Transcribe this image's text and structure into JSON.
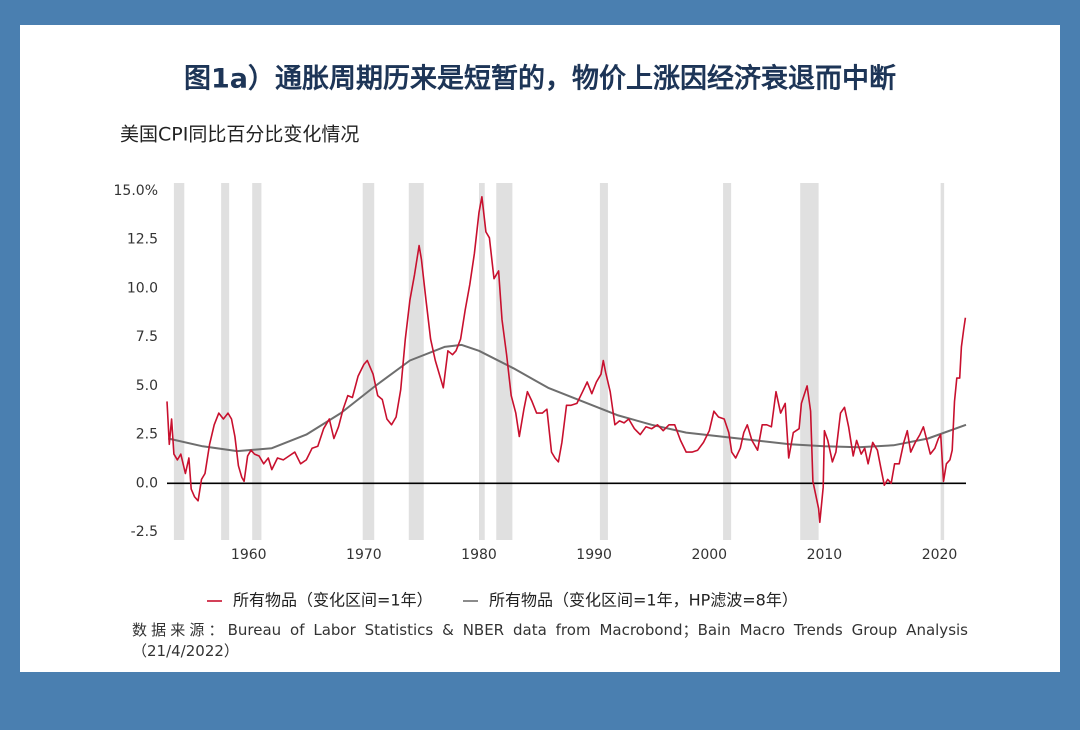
{
  "chart_data": {
    "type": "line",
    "title": "图1a）通胀周期历来是短暂的，物价上涨因经济衰退而中断",
    "subtitle": "美国CPI同比百分比变化情况",
    "source": "数据来源：Bureau of Labor Statistics & NBER data from Macrobond；Bain Macro Trends Group Analysis （21/4/2022）",
    "xlim": [
      1952.9,
      2022.3
    ],
    "xticks": [
      1960,
      1970,
      1980,
      1990,
      2000,
      2010,
      2020
    ],
    "ylim": [
      -2.5,
      15
    ],
    "yticks": [
      {
        "value": 15,
        "label": "15.0%"
      },
      12.5,
      {
        "value": 10,
        "label": "10.0"
      },
      7.5,
      {
        "value": 5,
        "label": "5.0"
      },
      2.5,
      {
        "value": 0,
        "label": "0.0"
      },
      -2.5
    ],
    "grid": false,
    "recession_color": "#e0e0e0",
    "recessions": [
      [
        1953.5,
        1954.4
      ],
      [
        1957.6,
        1958.3
      ],
      [
        1960.3,
        1961.1
      ],
      [
        1969.9,
        1970.9
      ],
      [
        1973.9,
        1975.2
      ],
      [
        1980.0,
        1980.5
      ],
      [
        1981.5,
        1982.9
      ],
      [
        1990.5,
        1991.2
      ],
      [
        2001.2,
        2001.9
      ],
      [
        2007.9,
        2009.5
      ],
      [
        2020.1,
        2020.4
      ]
    ],
    "series": [
      {
        "name": "所有物品（变化区间=1年）",
        "color": "#c8102e",
        "x": [
          1952.9,
          1953.1,
          1953.3,
          1953.5,
          1953.8,
          1954.1,
          1954.5,
          1954.8,
          1955.0,
          1955.3,
          1955.6,
          1955.9,
          1956.2,
          1956.6,
          1957.0,
          1957.4,
          1957.8,
          1958.2,
          1958.5,
          1958.8,
          1959.1,
          1959.4,
          1959.6,
          1959.9,
          1960.2,
          1960.5,
          1960.9,
          1961.3,
          1961.7,
          1962.0,
          1962.5,
          1963.0,
          1963.5,
          1964.0,
          1964.5,
          1965.0,
          1965.5,
          1966.0,
          1966.5,
          1967.0,
          1967.4,
          1967.8,
          1968.2,
          1968.6,
          1969.0,
          1969.5,
          1970.0,
          1970.3,
          1970.8,
          1971.2,
          1971.6,
          1972.0,
          1972.4,
          1972.8,
          1973.2,
          1973.6,
          1974.0,
          1974.4,
          1974.8,
          1975.0,
          1975.4,
          1975.8,
          1976.2,
          1976.6,
          1976.9,
          1977.3,
          1977.7,
          1978.0,
          1978.4,
          1978.8,
          1979.2,
          1979.6,
          1980.0,
          1980.25,
          1980.6,
          1980.9,
          1981.3,
          1981.7,
          1982.0,
          1982.4,
          1982.8,
          1983.2,
          1983.5,
          1983.9,
          1984.2,
          1984.6,
          1985.0,
          1985.5,
          1985.9,
          1986.3,
          1986.6,
          1986.9,
          1987.2,
          1987.6,
          1988.0,
          1988.5,
          1989.0,
          1989.4,
          1989.8,
          1990.2,
          1990.6,
          1990.8,
          1991.0,
          1991.4,
          1991.8,
          1992.2,
          1992.6,
          1993.0,
          1993.5,
          1994.0,
          1994.5,
          1995.0,
          1995.5,
          1996.0,
          1996.5,
          1997.0,
          1997.5,
          1998.0,
          1998.5,
          1999.0,
          1999.5,
          2000.0,
          2000.4,
          2000.8,
          2001.3,
          2001.7,
          2001.95,
          2002.3,
          2002.7,
          2003.0,
          2003.3,
          2003.7,
          2004.2,
          2004.6,
          2005.0,
          2005.4,
          2005.8,
          2006.2,
          2006.6,
          2006.9,
          2007.3,
          2007.8,
          2008.0,
          2008.5,
          2008.8,
          2009.0,
          2009.5,
          2009.6,
          2009.9,
          2010.0,
          2010.3,
          2010.7,
          2011.0,
          2011.4,
          2011.75,
          2012.1,
          2012.5,
          2012.8,
          2013.2,
          2013.5,
          2013.8,
          2014.2,
          2014.6,
          2014.9,
          2015.2,
          2015.5,
          2015.8,
          2016.1,
          2016.5,
          2016.9,
          2017.2,
          2017.5,
          2017.9,
          2018.3,
          2018.6,
          2018.9,
          2019.2,
          2019.6,
          2019.9,
          2020.1,
          2020.35,
          2020.6,
          2020.9,
          2021.1,
          2021.3,
          2021.5,
          2021.75,
          2021.9,
          2022.1,
          2022.25
        ],
        "values": [
          4.2,
          2.0,
          3.3,
          1.5,
          1.2,
          1.5,
          0.5,
          1.3,
          -0.3,
          -0.7,
          -0.9,
          0.2,
          0.5,
          2.0,
          3.0,
          3.6,
          3.3,
          3.6,
          3.3,
          2.4,
          0.9,
          0.3,
          0.1,
          1.4,
          1.7,
          1.5,
          1.4,
          1.0,
          1.3,
          0.7,
          1.3,
          1.2,
          1.4,
          1.6,
          1.0,
          1.2,
          1.8,
          1.9,
          2.8,
          3.3,
          2.3,
          2.9,
          3.8,
          4.5,
          4.4,
          5.5,
          6.1,
          6.3,
          5.6,
          4.5,
          4.3,
          3.3,
          3.0,
          3.4,
          4.8,
          7.4,
          9.4,
          10.7,
          12.2,
          11.5,
          9.4,
          7.4,
          6.3,
          5.5,
          4.9,
          6.8,
          6.6,
          6.8,
          7.4,
          8.9,
          10.2,
          11.8,
          13.9,
          14.7,
          12.9,
          12.6,
          10.5,
          10.9,
          8.4,
          6.6,
          4.5,
          3.6,
          2.4,
          3.8,
          4.7,
          4.2,
          3.6,
          3.6,
          3.8,
          1.6,
          1.3,
          1.1,
          2.1,
          4.0,
          4.0,
          4.1,
          4.7,
          5.2,
          4.6,
          5.2,
          5.6,
          6.3,
          5.7,
          4.7,
          3.0,
          3.2,
          3.1,
          3.3,
          2.8,
          2.5,
          2.9,
          2.8,
          3.0,
          2.7,
          3.0,
          3.0,
          2.2,
          1.6,
          1.6,
          1.7,
          2.1,
          2.7,
          3.7,
          3.4,
          3.3,
          2.6,
          1.6,
          1.3,
          1.8,
          2.6,
          3.0,
          2.2,
          1.7,
          3.0,
          3.0,
          2.9,
          4.7,
          3.6,
          4.1,
          1.3,
          2.6,
          2.8,
          4.1,
          5.0,
          3.7,
          0.1,
          -1.3,
          -2.0,
          -0.2,
          2.7,
          2.2,
          1.1,
          1.6,
          3.6,
          3.9,
          2.9,
          1.4,
          2.2,
          1.5,
          1.8,
          1.0,
          2.1,
          1.7,
          0.8,
          -0.1,
          0.2,
          0.0,
          1.0,
          1.0,
          2.1,
          2.7,
          1.6,
          2.1,
          2.5,
          2.9,
          2.2,
          1.5,
          1.8,
          2.3,
          2.5,
          0.1,
          1.0,
          1.2,
          1.7,
          4.2,
          5.4,
          5.4,
          7.0,
          7.9,
          8.5
        ]
      },
      {
        "name": "所有物品（变化区间=1年，HP滤波=8年）",
        "color": "#6e6e6e",
        "x": [
          1953,
          1956,
          1959,
          1962,
          1965,
          1968,
          1971,
          1974,
          1977,
          1978.5,
          1980,
          1983,
          1986,
          1989,
          1992,
          1995,
          1998,
          2001,
          2004,
          2007,
          2010,
          2013,
          2016,
          2019,
          2022.3
        ],
        "values": [
          2.3,
          1.9,
          1.65,
          1.8,
          2.5,
          3.6,
          5.0,
          6.3,
          7.0,
          7.1,
          6.8,
          5.9,
          4.9,
          4.2,
          3.5,
          3.0,
          2.6,
          2.4,
          2.2,
          2.0,
          1.9,
          1.85,
          1.95,
          2.3,
          3.0
        ]
      }
    ]
  }
}
